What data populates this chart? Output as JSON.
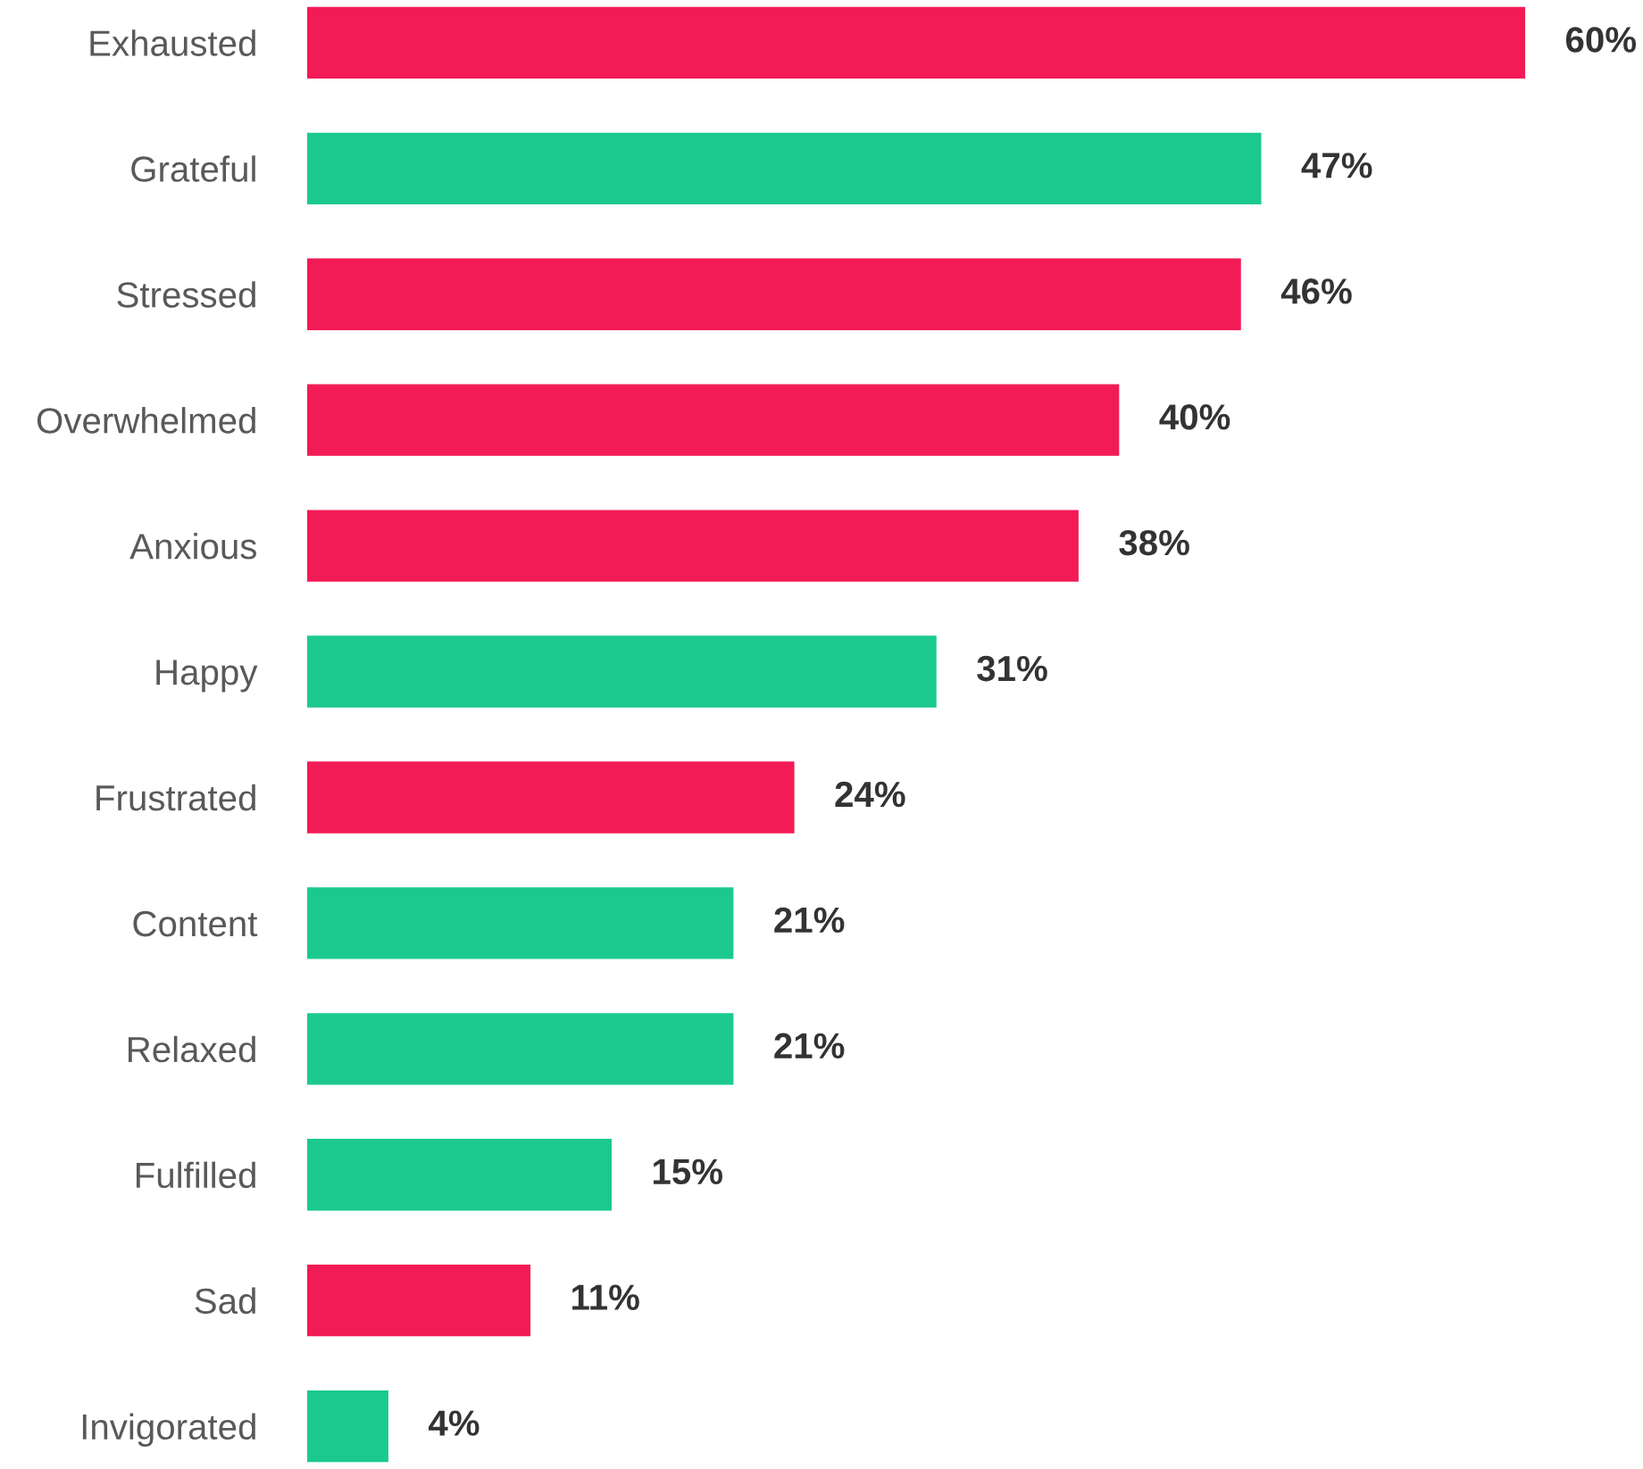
{
  "chart_data": {
    "type": "bar",
    "orientation": "horizontal",
    "categories": [
      "Exhausted",
      "Grateful",
      "Stressed",
      "Overwhelmed",
      "Anxious",
      "Happy",
      "Frustrated",
      "Content",
      "Relaxed",
      "Fulfilled",
      "Sad",
      "Invigorated"
    ],
    "values": [
      60,
      47,
      46,
      40,
      38,
      31,
      24,
      21,
      21,
      15,
      11,
      4
    ],
    "value_labels": [
      "60%",
      "47%",
      "46%",
      "40%",
      "38%",
      "31%",
      "24%",
      "21%",
      "21%",
      "15%",
      "11%",
      "4%"
    ],
    "colors": [
      "#f21b56",
      "#1bc98e",
      "#f21b56",
      "#f21b56",
      "#f21b56",
      "#1bc98e",
      "#f21b56",
      "#1bc98e",
      "#1bc98e",
      "#1bc98e",
      "#f21b56",
      "#1bc98e"
    ],
    "tick_labels": "y",
    "grid": false,
    "legend": false
  }
}
